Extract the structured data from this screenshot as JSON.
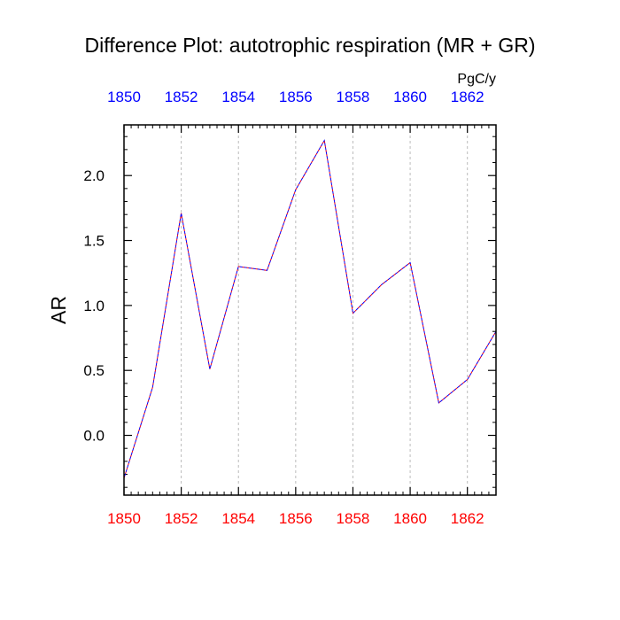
{
  "chart_data": {
    "type": "line",
    "title": "Difference Plot: autotrophic respiration (MR + GR)",
    "units_label": "PgC/y",
    "ylabel": "AR",
    "xlabel": "",
    "x": [
      1850,
      1851,
      1852,
      1853,
      1854,
      1855,
      1856,
      1857,
      1858,
      1859,
      1860,
      1861,
      1862,
      1863
    ],
    "series": [
      {
        "values": [
          -0.33,
          0.37,
          1.71,
          0.51,
          1.3,
          1.27,
          1.89,
          2.27,
          0.94,
          1.16,
          1.33,
          0.25,
          0.43,
          0.8
        ]
      }
    ],
    "xlim": [
      1850,
      1863
    ],
    "ylim": [
      -0.46,
      2.39
    ],
    "x_ticks": [
      "1850",
      "1852",
      "1854",
      "1856",
      "1858",
      "1860",
      "1862"
    ],
    "y_ticks": [
      "0.0",
      "0.5",
      "1.0",
      "1.5",
      "2.0"
    ],
    "grid": "vertical dashed at major x ticks",
    "colors": {
      "line_primary": "#ff0000",
      "line_overlay": "#0000ff",
      "bottom_axis_labels": "#ff0000",
      "top_axis_labels": "#0000ff",
      "grid": "#bbbbbb"
    }
  }
}
